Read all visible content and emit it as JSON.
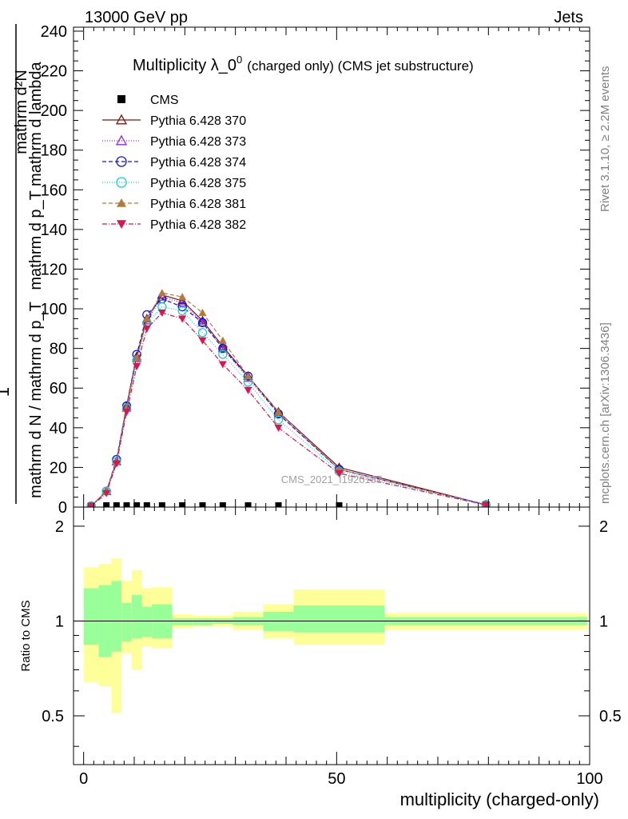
{
  "header": {
    "left": "13000 GeV pp",
    "right": "Jets"
  },
  "side_labels": {
    "rivet": "Rivet 3.1.10, ≥ 2.2M events",
    "mcplots": "mcplots.cern.ch [arXiv:1306.3436]"
  },
  "watermark": "CMS_2021_I1920187",
  "chart_data": {
    "type": "line",
    "title_main": "Multiplicity λ_0",
    "title_sup": "0",
    "title_rest": "(charged only) (CMS jet substructure)",
    "ylabel_top": "1",
    "ylabel_num": "mathrm d²N",
    "ylabel_num2": "mathrm d p_T mathrm d lambda",
    "ylabel_den": "mathrm d N / mathrm d p_T",
    "xlabel": "multiplicity (charged-only)",
    "ratio_ylabel": "Ratio to CMS",
    "xlim": [
      -2,
      100
    ],
    "ylim": [
      0,
      242
    ],
    "ratio_ylim": [
      0.35,
      2.3
    ],
    "x_ticks": [
      0,
      50,
      100
    ],
    "y_ticks": [
      0,
      20,
      40,
      60,
      80,
      100,
      120,
      140,
      160,
      180,
      200,
      220,
      240
    ],
    "ratio_ticks": [
      0.5,
      1,
      2
    ],
    "legend_position": "top-left",
    "x": [
      1.5,
      4.5,
      6.5,
      8.5,
      10.5,
      12.5,
      15.5,
      19.5,
      23.5,
      27.5,
      32.5,
      38.5,
      50.5,
      79.5
    ],
    "series": [
      {
        "name": "CMS",
        "color": "#000000",
        "marker": "square",
        "values": [
          0,
          0,
          0,
          0,
          0,
          0,
          0,
          0,
          0,
          0,
          0,
          0,
          0,
          0
        ]
      },
      {
        "name": "Pythia 6.428 370",
        "color": "#7f1414",
        "marker": "triangle-open",
        "dash": "",
        "values": [
          0.5,
          8,
          23,
          51,
          76,
          95,
          107,
          104,
          94,
          81,
          66,
          48,
          20,
          1.2
        ]
      },
      {
        "name": "Pythia 6.428 373",
        "color": "#8a2be2",
        "marker": "triangle-open",
        "dash": "1,2",
        "values": [
          0.5,
          8,
          23,
          50,
          75,
          94,
          106,
          103,
          93,
          80,
          65,
          47,
          19,
          1.2
        ]
      },
      {
        "name": "Pythia 6.428 374",
        "color": "#1414dc",
        "marker": "circle-open",
        "dash": "5,3",
        "values": [
          0.6,
          8,
          24,
          51,
          77,
          97,
          105,
          101,
          93,
          80,
          66,
          47,
          19,
          1.2
        ]
      },
      {
        "name": "Pythia 6.428 375",
        "color": "#14d2c8",
        "marker": "circle-open",
        "dash": "1,2",
        "values": [
          0.6,
          8,
          23,
          50,
          74,
          93,
          101,
          99,
          88,
          77,
          63,
          44,
          18,
          1.2
        ]
      },
      {
        "name": "Pythia 6.428 381",
        "color": "#b47a3c",
        "marker": "triangle",
        "dash": "5,3",
        "values": [
          0.5,
          8,
          23,
          50,
          75,
          95,
          108,
          106,
          98,
          84,
          66,
          48,
          19,
          1.2
        ]
      },
      {
        "name": "Pythia 6.428 382",
        "color": "#dc1450",
        "marker": "triangle-down",
        "dash": "6,2,1,2",
        "values": [
          0.5,
          7,
          22,
          48,
          71,
          90,
          98,
          95,
          84,
          72,
          59,
          40,
          17,
          1.1
        ]
      }
    ],
    "ratio_bands": [
      {
        "x0": 0,
        "x1": 3,
        "inner": [
          0.84,
          1.27
        ],
        "outer": [
          0.64,
          1.48
        ]
      },
      {
        "x0": 3,
        "x1": 5.5,
        "inner": [
          0.77,
          1.3
        ],
        "outer": [
          0.62,
          1.52
        ]
      },
      {
        "x0": 5.5,
        "x1": 7.5,
        "inner": [
          0.8,
          1.34
        ],
        "outer": [
          0.51,
          1.58
        ]
      },
      {
        "x0": 7.5,
        "x1": 9.5,
        "inner": [
          0.86,
          1.14
        ],
        "outer": [
          0.79,
          1.34
        ]
      },
      {
        "x0": 9.5,
        "x1": 11.5,
        "inner": [
          0.88,
          1.21
        ],
        "outer": [
          0.7,
          1.45
        ]
      },
      {
        "x0": 11.5,
        "x1": 13.5,
        "inner": [
          0.89,
          1.11
        ],
        "outer": [
          0.83,
          1.27
        ]
      },
      {
        "x0": 13.5,
        "x1": 17.5,
        "inner": [
          0.88,
          1.13
        ],
        "outer": [
          0.82,
          1.28
        ]
      },
      {
        "x0": 17.5,
        "x1": 21.5,
        "inner": [
          0.97,
          1.02
        ],
        "outer": [
          0.95,
          1.05
        ]
      },
      {
        "x0": 21.5,
        "x1": 25.5,
        "inner": [
          0.97,
          1.02
        ],
        "outer": [
          0.96,
          1.04
        ]
      },
      {
        "x0": 25.5,
        "x1": 29.5,
        "inner": [
          0.98,
          1.02
        ],
        "outer": [
          0.96,
          1.04
        ]
      },
      {
        "x0": 29.5,
        "x1": 35.5,
        "inner": [
          0.97,
          1.03
        ],
        "outer": [
          0.94,
          1.07
        ]
      },
      {
        "x0": 35.5,
        "x1": 41.5,
        "inner": [
          0.93,
          1.07
        ],
        "outer": [
          0.88,
          1.13
        ]
      },
      {
        "x0": 41.5,
        "x1": 59.5,
        "inner": [
          0.92,
          1.12
        ],
        "outer": [
          0.84,
          1.26
        ]
      },
      {
        "x0": 59.5,
        "x1": 99.5,
        "inner": [
          0.97,
          1.03
        ],
        "outer": [
          0.94,
          1.06
        ]
      }
    ]
  }
}
